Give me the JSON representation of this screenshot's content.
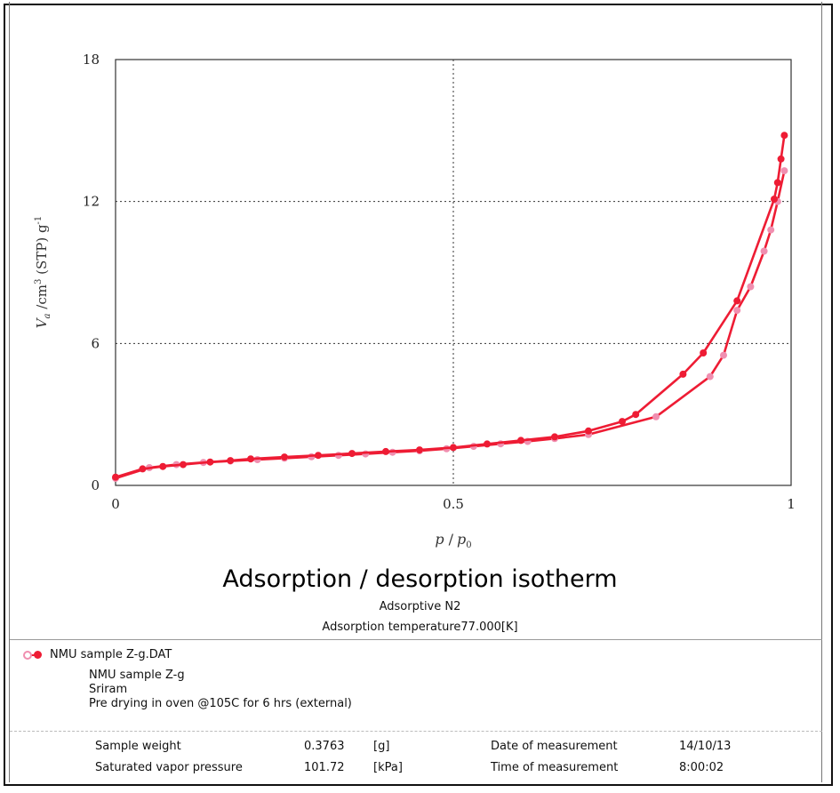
{
  "chart_data": {
    "type": "line",
    "title": "Adsorption / desorption isotherm",
    "xlabel": "p / p₀",
    "ylabel": "Vₐ /cm³(STP) g⁻¹",
    "xlim": [
      0,
      1
    ],
    "ylim": [
      0,
      18
    ],
    "x_ticks": [
      "0",
      "0.5",
      "1"
    ],
    "y_ticks": [
      "0",
      "6",
      "12",
      "18"
    ],
    "grid": "dotted at 0.5 (x) and 6, 12 (y)",
    "series": [
      {
        "name": "adsorption",
        "color": "#f08fb0",
        "x": [
          0.0,
          0.05,
          0.09,
          0.13,
          0.17,
          0.21,
          0.25,
          0.29,
          0.33,
          0.37,
          0.41,
          0.45,
          0.49,
          0.53,
          0.57,
          0.61,
          0.65,
          0.7,
          0.8,
          0.88,
          0.9,
          0.92,
          0.94,
          0.96,
          0.97,
          0.98,
          0.99
        ],
        "y": [
          0.3,
          0.75,
          0.88,
          0.97,
          1.03,
          1.09,
          1.15,
          1.21,
          1.27,
          1.33,
          1.4,
          1.46,
          1.55,
          1.65,
          1.76,
          1.86,
          1.98,
          2.15,
          2.9,
          4.6,
          5.5,
          7.4,
          8.4,
          9.9,
          10.8,
          12.0,
          13.3
        ]
      },
      {
        "name": "desorption",
        "color": "#ee1c34",
        "x": [
          0.99,
          0.985,
          0.98,
          0.975,
          0.92,
          0.87,
          0.84,
          0.77,
          0.75,
          0.7,
          0.65,
          0.6,
          0.55,
          0.5,
          0.45,
          0.4,
          0.35,
          0.3,
          0.25,
          0.2,
          0.17,
          0.14,
          0.1,
          0.07,
          0.04,
          0.0
        ],
        "y": [
          14.8,
          13.8,
          12.8,
          12.1,
          7.8,
          5.6,
          4.7,
          3.0,
          2.7,
          2.3,
          2.05,
          1.9,
          1.75,
          1.6,
          1.5,
          1.43,
          1.35,
          1.27,
          1.2,
          1.12,
          1.05,
          0.99,
          0.88,
          0.8,
          0.7,
          0.35
        ]
      }
    ]
  },
  "axes": {
    "x_label_main": "p",
    "x_label_sep": " /",
    "x_label_p0": "p",
    "x_label_p0_sub": "0",
    "y_label_v": "V",
    "y_label_v_sub": "a",
    "y_label_rest": " /cm",
    "y_label_sup3": "3",
    "y_label_stp": " (STP) g",
    "y_label_supm1": "-1"
  },
  "header": {
    "title": "Adsorption / desorption isotherm",
    "adsorptive": "Adsorptive N2",
    "temperature": "Adsorption temperature77.000[K]"
  },
  "sample": {
    "file": "NMU sample Z-g.DAT",
    "name": "NMU sample Z-g",
    "operator": "Sriram",
    "comment": "Pre drying in oven @105C for 6 hrs (external)"
  },
  "measurements": {
    "weight_label": "Sample weight",
    "weight_value": "0.3763",
    "weight_unit": "[g]",
    "pressure_label": "Saturated vapor pressure",
    "pressure_value": "101.72",
    "pressure_unit": "[kPa]",
    "date_label": "Date of measurement",
    "date_value": "14/10/13",
    "time_label": "Time of measurement",
    "time_value": "8:00:02"
  }
}
